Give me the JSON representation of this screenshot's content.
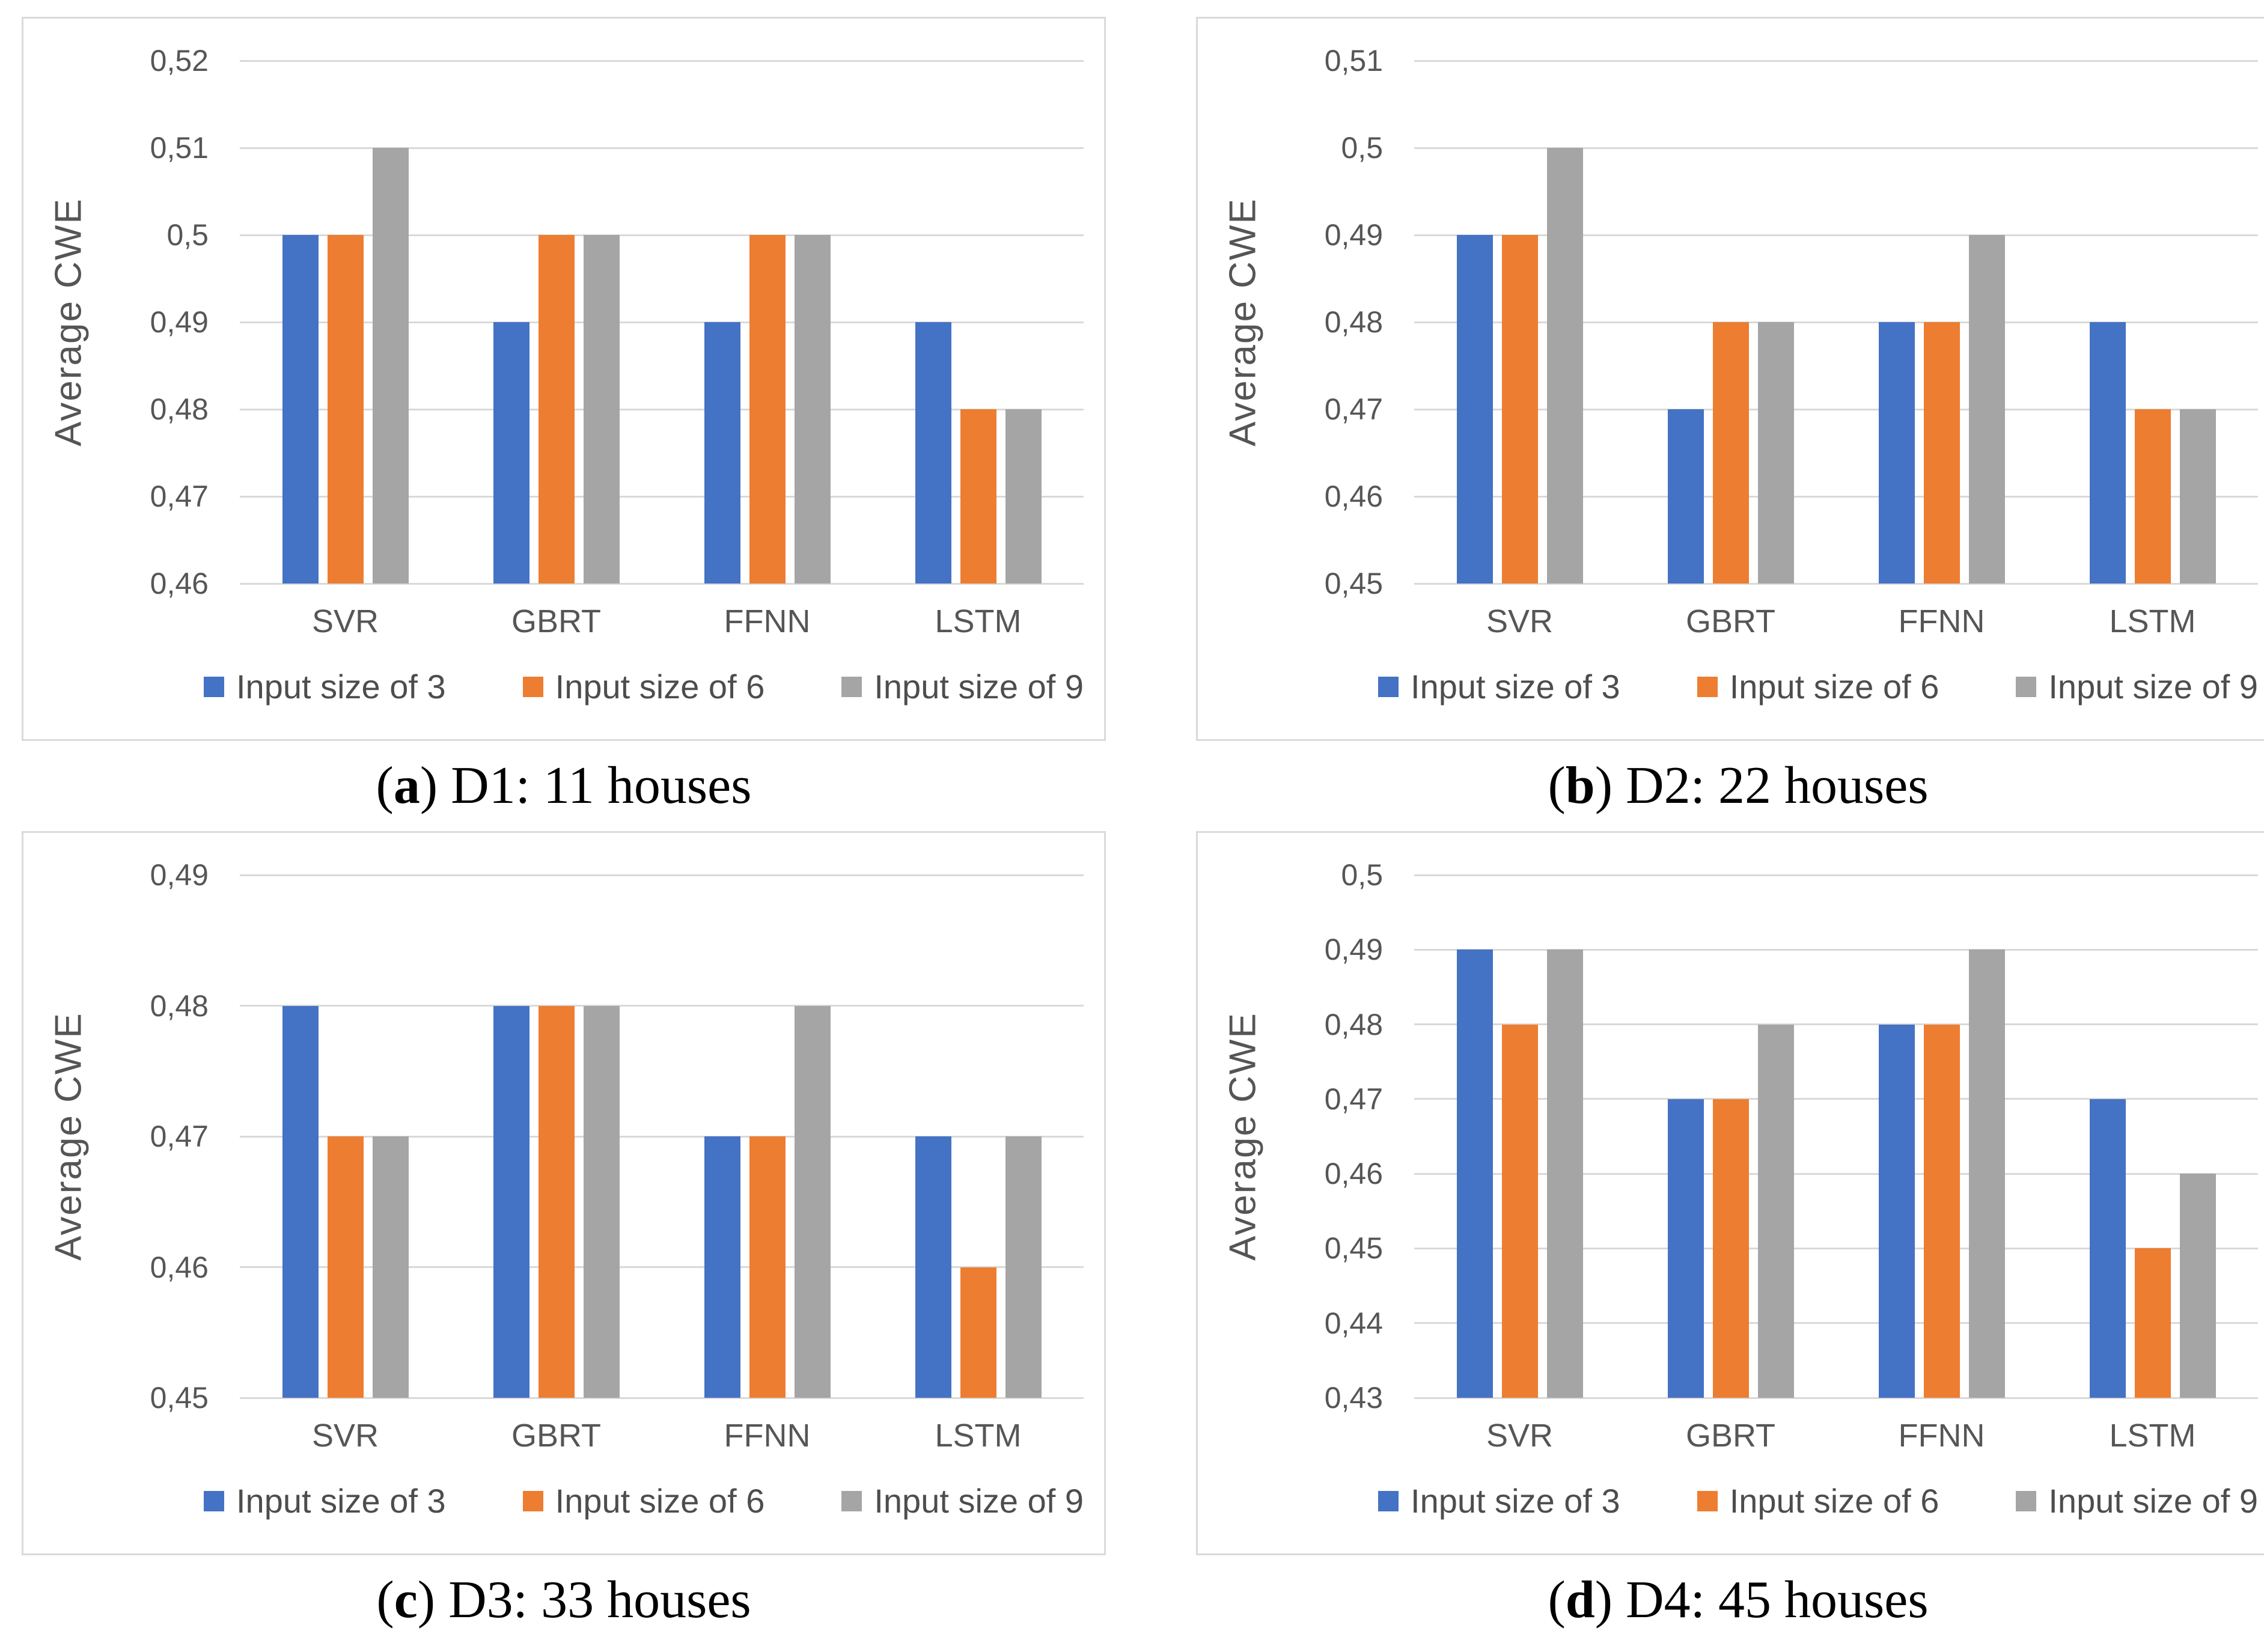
{
  "figure": {
    "ylabel": "Average CWE",
    "categories": [
      "SVR",
      "GBRT",
      "FFNN",
      "LSTM"
    ],
    "legend_labels": [
      "Input size of 3",
      "Input size of 6",
      "Input size of 9"
    ]
  },
  "colors": {
    "series_blue": "#4472C4",
    "series_orange": "#ED7D31",
    "series_gray": "#A5A5A5",
    "axis_text": "#565656",
    "gridline": "#D9D9D9",
    "frame_border": "#DADADA",
    "caption_text": "#000000"
  },
  "chart_data": [
    {
      "id": "a",
      "type": "bar",
      "title": "",
      "caption": {
        "letter": "a",
        "text": "D1: 11 houses"
      },
      "xlabel": "",
      "ylabel": "Average CWE",
      "categories": [
        "SVR",
        "GBRT",
        "FFNN",
        "LSTM"
      ],
      "series": [
        {
          "name": "Input size of 3",
          "color": "#4472C4",
          "values": [
            0.5,
            0.49,
            0.49,
            0.49
          ]
        },
        {
          "name": "Input size of 6",
          "color": "#ED7D31",
          "values": [
            0.5,
            0.5,
            0.5,
            0.48
          ]
        },
        {
          "name": "Input size of 9",
          "color": "#A5A5A5",
          "values": [
            0.51,
            0.5,
            0.5,
            0.48
          ]
        }
      ],
      "ylim": [
        0.46,
        0.52
      ],
      "ytick_values": [
        0.46,
        0.47,
        0.48,
        0.49,
        0.5,
        0.51,
        0.52
      ],
      "ytick_labels": [
        "0,46",
        "0,47",
        "0,48",
        "0,49",
        "0,5",
        "0,51",
        "0,52"
      ],
      "grid": true,
      "legend_position": "bottom"
    },
    {
      "id": "b",
      "type": "bar",
      "title": "",
      "caption": {
        "letter": "b",
        "text": "D2: 22 houses"
      },
      "xlabel": "",
      "ylabel": "Average CWE",
      "categories": [
        "SVR",
        "GBRT",
        "FFNN",
        "LSTM"
      ],
      "series": [
        {
          "name": "Input size of 3",
          "color": "#4472C4",
          "values": [
            0.49,
            0.47,
            0.48,
            0.48
          ]
        },
        {
          "name": "Input size of 6",
          "color": "#ED7D31",
          "values": [
            0.49,
            0.48,
            0.48,
            0.47
          ]
        },
        {
          "name": "Input size of 9",
          "color": "#A5A5A5",
          "values": [
            0.5,
            0.48,
            0.49,
            0.47
          ]
        }
      ],
      "ylim": [
        0.45,
        0.51
      ],
      "ytick_values": [
        0.45,
        0.46,
        0.47,
        0.48,
        0.49,
        0.5,
        0.51
      ],
      "ytick_labels": [
        "0,45",
        "0,46",
        "0,47",
        "0,48",
        "0,49",
        "0,5",
        "0,51"
      ],
      "grid": true,
      "legend_position": "bottom"
    },
    {
      "id": "c",
      "type": "bar",
      "title": "",
      "caption": {
        "letter": "c",
        "text": "D3: 33 houses"
      },
      "xlabel": "",
      "ylabel": "Average CWE",
      "categories": [
        "SVR",
        "GBRT",
        "FFNN",
        "LSTM"
      ],
      "series": [
        {
          "name": "Input size of 3",
          "color": "#4472C4",
          "values": [
            0.48,
            0.48,
            0.47,
            0.47
          ]
        },
        {
          "name": "Input size of 6",
          "color": "#ED7D31",
          "values": [
            0.47,
            0.48,
            0.47,
            0.46
          ]
        },
        {
          "name": "Input size of 9",
          "color": "#A5A5A5",
          "values": [
            0.47,
            0.48,
            0.48,
            0.47
          ]
        }
      ],
      "ylim": [
        0.45,
        0.49
      ],
      "ytick_values": [
        0.45,
        0.46,
        0.47,
        0.48,
        0.49
      ],
      "ytick_labels": [
        "0,45",
        "0,46",
        "0,47",
        "0,48",
        "0,49"
      ],
      "grid": true,
      "legend_position": "bottom"
    },
    {
      "id": "d",
      "type": "bar",
      "title": "",
      "caption": {
        "letter": "d",
        "text": "D4: 45 houses"
      },
      "xlabel": "",
      "ylabel": "Average CWE",
      "categories": [
        "SVR",
        "GBRT",
        "FFNN",
        "LSTM"
      ],
      "series": [
        {
          "name": "Input size of 3",
          "color": "#4472C4",
          "values": [
            0.49,
            0.47,
            0.48,
            0.47
          ]
        },
        {
          "name": "Input size of 6",
          "color": "#ED7D31",
          "values": [
            0.48,
            0.47,
            0.48,
            0.45
          ]
        },
        {
          "name": "Input size of 9",
          "color": "#A5A5A5",
          "values": [
            0.49,
            0.48,
            0.49,
            0.46
          ]
        }
      ],
      "ylim": [
        0.43,
        0.5
      ],
      "ytick_values": [
        0.43,
        0.44,
        0.45,
        0.46,
        0.47,
        0.48,
        0.49,
        0.5
      ],
      "ytick_labels": [
        "0,43",
        "0,44",
        "0,45",
        "0,46",
        "0,47",
        "0,48",
        "0,49",
        "0,5"
      ],
      "grid": true,
      "legend_position": "bottom"
    }
  ]
}
